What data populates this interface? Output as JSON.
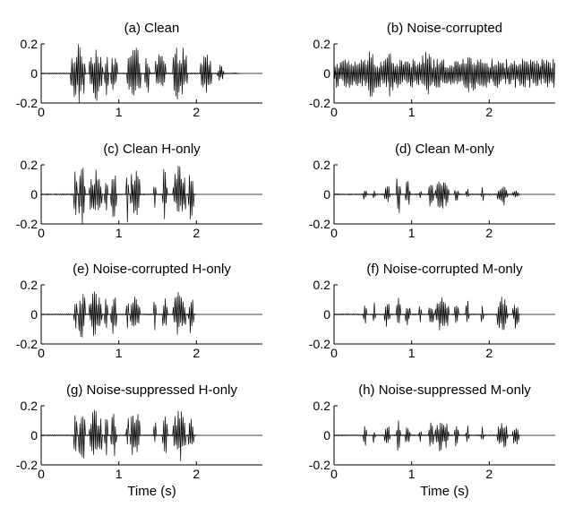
{
  "figure": {
    "chart_data": [
      {
        "type": "line",
        "title": "(a) Clean",
        "xlabel": "",
        "ylabel": "",
        "xlim": [
          0,
          2.85
        ],
        "ylim": [
          -0.2,
          0.2
        ],
        "xticks": [
          0,
          1,
          2
        ],
        "yticks": [
          -0.2,
          0,
          0.2
        ],
        "xtick_labels": [
          "0",
          "1",
          "2"
        ],
        "ytick_labels": [
          "-0.2",
          "0",
          "0.2"
        ],
        "signal": {
          "duration_s": 2.55,
          "peak_amplitude": 0.2,
          "bursts": [
            [
              0.38,
              0.57,
              0.2
            ],
            [
              0.62,
              0.79,
              0.2
            ],
            [
              0.82,
              0.87,
              0.15
            ],
            [
              0.9,
              0.98,
              0.15
            ],
            [
              1.11,
              1.28,
              0.2
            ],
            [
              1.33,
              1.4,
              0.15
            ],
            [
              1.47,
              1.6,
              0.15
            ],
            [
              1.7,
              1.88,
              0.2
            ],
            [
              2.05,
              2.2,
              0.15
            ],
            [
              2.27,
              2.35,
              0.06
            ]
          ]
        }
      },
      {
        "type": "line",
        "title": "(b) Noise-corrupted",
        "xlabel": "",
        "ylabel": "",
        "xlim": [
          0,
          2.85
        ],
        "ylim": [
          -0.2,
          0.2
        ],
        "xticks": [
          0,
          1,
          2
        ],
        "yticks": [
          -0.2,
          0,
          0.2
        ],
        "xtick_labels": [
          "0",
          "1",
          "2"
        ],
        "ytick_labels": [
          "-0.2",
          "0",
          "0.2"
        ],
        "signal": {
          "duration_s": 2.85,
          "peak_amplitude": 0.18,
          "noise_floor": 0.1,
          "bursts": [
            [
              0.38,
              0.57,
              0.16
            ],
            [
              0.62,
              0.79,
              0.16
            ],
            [
              1.11,
              1.28,
              0.16
            ],
            [
              1.7,
              1.88,
              0.16
            ]
          ]
        }
      },
      {
        "type": "line",
        "title": "(c) Clean H-only",
        "xlabel": "",
        "ylabel": "",
        "xlim": [
          0,
          2.85
        ],
        "ylim": [
          -0.2,
          0.2
        ],
        "xticks": [
          0,
          1,
          2
        ],
        "yticks": [
          -0.2,
          0,
          0.2
        ],
        "xtick_labels": [
          "0",
          "1",
          "2"
        ],
        "ytick_labels": [
          "-0.2",
          "0",
          "0.2"
        ],
        "signal": {
          "duration_s": 2.0,
          "peak_amplitude": 0.2,
          "bursts": [
            [
              0.42,
              0.46,
              0.2
            ],
            [
              0.48,
              0.57,
              0.2
            ],
            [
              0.62,
              0.78,
              0.2
            ],
            [
              0.82,
              0.86,
              0.2
            ],
            [
              0.9,
              0.97,
              0.18
            ],
            [
              1.1,
              1.13,
              0.2
            ],
            [
              1.15,
              1.27,
              0.2
            ],
            [
              1.45,
              1.48,
              0.12
            ],
            [
              1.56,
              1.62,
              0.2
            ],
            [
              1.7,
              1.86,
              0.2
            ],
            [
              1.9,
              1.97,
              0.2
            ]
          ]
        }
      },
      {
        "type": "line",
        "title": "(d) Clean M-only",
        "xlabel": "",
        "ylabel": "",
        "xlim": [
          0,
          2.85
        ],
        "ylim": [
          -0.2,
          0.2
        ],
        "xticks": [
          0,
          1,
          2
        ],
        "yticks": [
          -0.2,
          0,
          0.2
        ],
        "xtick_labels": [
          "0",
          "1",
          "2"
        ],
        "ytick_labels": [
          "-0.2",
          "0",
          "0.2"
        ],
        "signal": {
          "duration_s": 2.4,
          "peak_amplitude": 0.14,
          "bursts": [
            [
              0.38,
              0.42,
              0.06
            ],
            [
              0.5,
              0.53,
              0.04
            ],
            [
              0.65,
              0.72,
              0.08
            ],
            [
              0.8,
              0.86,
              0.14
            ],
            [
              0.92,
              0.98,
              0.1
            ],
            [
              1.1,
              1.13,
              0.03
            ],
            [
              1.22,
              1.28,
              0.1
            ],
            [
              1.3,
              1.48,
              0.1
            ],
            [
              1.55,
              1.6,
              0.05
            ],
            [
              1.7,
              1.74,
              0.04
            ],
            [
              1.9,
              1.93,
              0.05
            ],
            [
              2.1,
              2.24,
              0.08
            ],
            [
              2.3,
              2.38,
              0.03
            ]
          ]
        }
      },
      {
        "type": "line",
        "title": "(e) Noise-corrupted H-only",
        "xlabel": "",
        "ylabel": "",
        "xlim": [
          0,
          2.85
        ],
        "ylim": [
          -0.2,
          0.2
        ],
        "xticks": [
          0,
          1,
          2
        ],
        "yticks": [
          -0.2,
          0,
          0.2
        ],
        "xtick_labels": [
          "0",
          "1",
          "2"
        ],
        "ytick_labels": [
          "-0.2",
          "0",
          "0.2"
        ],
        "signal": {
          "duration_s": 2.0,
          "peak_amplitude": 0.18,
          "bursts": [
            [
              0.42,
              0.46,
              0.14
            ],
            [
              0.48,
              0.57,
              0.18
            ],
            [
              0.62,
              0.78,
              0.16
            ],
            [
              0.82,
              0.86,
              0.12
            ],
            [
              0.9,
              0.97,
              0.14
            ],
            [
              1.1,
              1.13,
              0.14
            ],
            [
              1.15,
              1.27,
              0.15
            ],
            [
              1.45,
              1.48,
              0.12
            ],
            [
              1.56,
              1.62,
              0.14
            ],
            [
              1.7,
              1.86,
              0.16
            ],
            [
              1.9,
              1.97,
              0.14
            ]
          ]
        }
      },
      {
        "type": "line",
        "title": "(f) Noise-corrupted M-only",
        "xlabel": "",
        "ylabel": "",
        "xlim": [
          0,
          2.85
        ],
        "ylim": [
          -0.2,
          0.2
        ],
        "xticks": [
          0,
          1,
          2
        ],
        "yticks": [
          -0.2,
          0,
          0.2
        ],
        "xtick_labels": [
          "0",
          "1",
          "2"
        ],
        "ytick_labels": [
          "-0.2",
          "0",
          "0.2"
        ],
        "signal": {
          "duration_s": 2.4,
          "peak_amplitude": 0.12,
          "bursts": [
            [
              0.38,
              0.42,
              0.1
            ],
            [
              0.5,
              0.53,
              0.1
            ],
            [
              0.65,
              0.72,
              0.1
            ],
            [
              0.8,
              0.86,
              0.12
            ],
            [
              0.92,
              0.98,
              0.1
            ],
            [
              1.1,
              1.13,
              0.1
            ],
            [
              1.22,
              1.28,
              0.1
            ],
            [
              1.3,
              1.48,
              0.12
            ],
            [
              1.55,
              1.6,
              0.1
            ],
            [
              1.7,
              1.74,
              0.1
            ],
            [
              1.9,
              1.93,
              0.1
            ],
            [
              2.1,
              2.24,
              0.12
            ],
            [
              2.3,
              2.38,
              0.1
            ]
          ]
        }
      },
      {
        "type": "line",
        "title": "(g) Noise-suppressed H-only",
        "xlabel": "Time (s)",
        "ylabel": "",
        "xlim": [
          0,
          2.85
        ],
        "ylim": [
          -0.2,
          0.2
        ],
        "xticks": [
          0,
          1,
          2
        ],
        "yticks": [
          -0.2,
          0,
          0.2
        ],
        "xtick_labels": [
          "0",
          "1",
          "2"
        ],
        "ytick_labels": [
          "-0.2",
          "0",
          "0.2"
        ],
        "signal": {
          "duration_s": 2.0,
          "peak_amplitude": 0.2,
          "bursts": [
            [
              0.42,
              0.46,
              0.16
            ],
            [
              0.48,
              0.57,
              0.2
            ],
            [
              0.62,
              0.78,
              0.18
            ],
            [
              0.82,
              0.86,
              0.14
            ],
            [
              0.9,
              0.97,
              0.16
            ],
            [
              1.1,
              1.13,
              0.16
            ],
            [
              1.15,
              1.27,
              0.18
            ],
            [
              1.45,
              1.48,
              0.12
            ],
            [
              1.56,
              1.62,
              0.16
            ],
            [
              1.7,
              1.86,
              0.18
            ],
            [
              1.9,
              1.97,
              0.15
            ]
          ]
        }
      },
      {
        "type": "line",
        "title": "(h) Noise-suppressed M-only",
        "xlabel": "Time (s)",
        "ylabel": "",
        "xlim": [
          0,
          2.85
        ],
        "ylim": [
          -0.2,
          0.2
        ],
        "xticks": [
          0,
          1,
          2
        ],
        "yticks": [
          -0.2,
          0,
          0.2
        ],
        "xtick_labels": [
          "0",
          "1",
          "2"
        ],
        "ytick_labels": [
          "-0.2",
          "0",
          "0.2"
        ],
        "signal": {
          "duration_s": 2.4,
          "peak_amplitude": 0.12,
          "bursts": [
            [
              0.38,
              0.42,
              0.08
            ],
            [
              0.5,
              0.53,
              0.06
            ],
            [
              0.65,
              0.72,
              0.08
            ],
            [
              0.8,
              0.86,
              0.12
            ],
            [
              0.92,
              0.98,
              0.09
            ],
            [
              1.1,
              1.13,
              0.05
            ],
            [
              1.22,
              1.28,
              0.1
            ],
            [
              1.3,
              1.48,
              0.12
            ],
            [
              1.55,
              1.6,
              0.08
            ],
            [
              1.7,
              1.74,
              0.07
            ],
            [
              1.9,
              1.93,
              0.07
            ],
            [
              2.1,
              2.24,
              0.1
            ],
            [
              2.3,
              2.38,
              0.07
            ]
          ]
        }
      }
    ]
  }
}
